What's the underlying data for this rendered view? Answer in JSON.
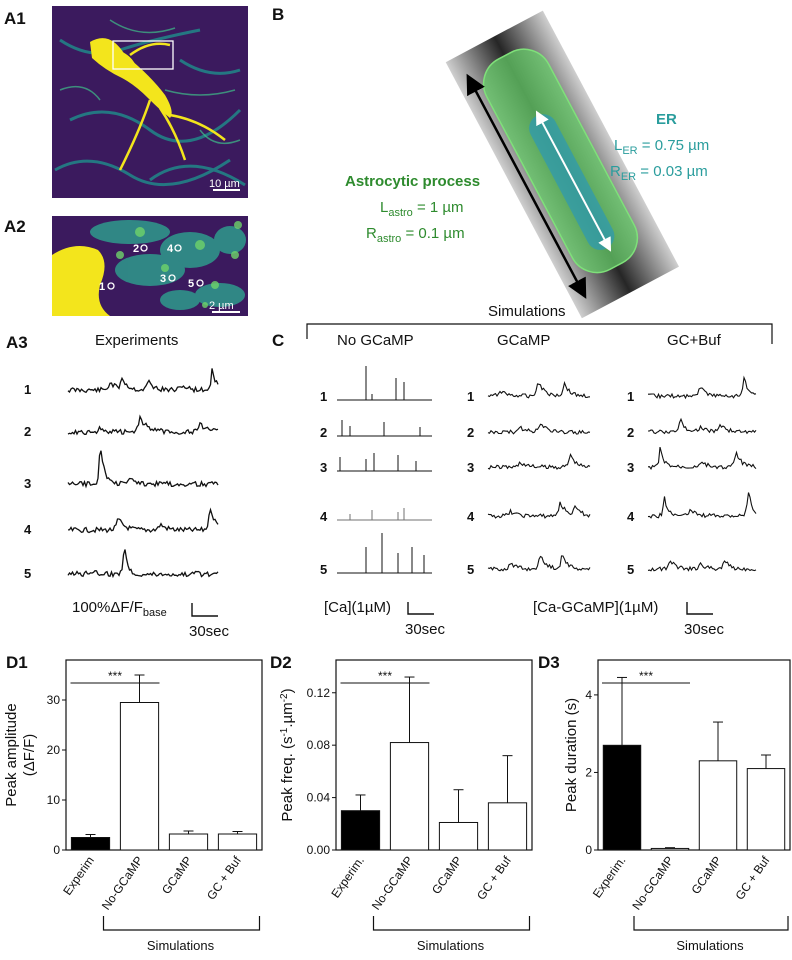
{
  "panels": {
    "a1": "A1",
    "a2": "A2",
    "a3": "A3",
    "b": "B",
    "c": "C",
    "d1": "D1",
    "d2": "D2",
    "d3": "D3"
  },
  "micrograph": {
    "a1_scalebar": "10 µm",
    "a2_scalebar": "2 µm",
    "roi_labels": [
      "1",
      "2",
      "3",
      "4",
      "5"
    ]
  },
  "model": {
    "astro_title": "Astrocytic process",
    "l_astro_sym": "L",
    "l_astro_sub": "astro",
    "l_astro_val": " = 1 µm",
    "r_astro_sym": "R",
    "r_astro_sub": "astro",
    "r_astro_val": " = 0.1 µm",
    "er_title": "ER",
    "l_er_sym": "L",
    "l_er_sub": "ER",
    "l_er_val": " = 0.75 µm",
    "r_er_sym": "R",
    "r_er_sub": "ER",
    "r_er_val": " = 0.03 µm"
  },
  "experiments": {
    "title": "Experiments",
    "trace_labels": [
      "1",
      "2",
      "3",
      "4",
      "5"
    ],
    "scale_prefix": "100%ΔF/F",
    "scale_sub": "base",
    "scale_time": "30sec"
  },
  "simulations": {
    "title": "Simulations",
    "columns": [
      "No GCaMP",
      "GCaMP",
      "GC+Buf"
    ],
    "trace_labels": [
      "1",
      "2",
      "3",
      "4",
      "5"
    ],
    "ca_scale": "[Ca](1µM)",
    "ca_time": "30sec",
    "gc_scale": "[Ca-GCaMP](1µM)",
    "gc_time": "30sec"
  },
  "chart_data": [
    {
      "type": "bar",
      "panel": "D1",
      "ylabel": "Peak amplitude",
      "ylabel2": "(ΔF/F)",
      "categories": [
        "Experim",
        "No-GCaMP",
        "GCaMP",
        "GC + Buf"
      ],
      "values": [
        2.5,
        29.5,
        3.2,
        3.2
      ],
      "errors": [
        0.6,
        5.5,
        0.6,
        0.5
      ],
      "fills": [
        "#000000",
        "#ffffff",
        "#ffffff",
        "#ffffff"
      ],
      "ylim": [
        0,
        38
      ],
      "yticks": [
        "0",
        "10",
        "20",
        "30"
      ],
      "ytick_values": [
        0,
        10,
        20,
        30
      ],
      "significance": "***",
      "group_label": "Simulations"
    },
    {
      "type": "bar",
      "panel": "D2",
      "ylabel": "Peak freq. (s",
      "ylabel_exp": "-1",
      "ylabel_mid": ".µm",
      "ylabel_exp2": "-2",
      "ylabel_end": ")",
      "categories": [
        "Experim.",
        "No-GCaMP",
        "GCaMP",
        "GC + Buf"
      ],
      "values": [
        0.03,
        0.082,
        0.021,
        0.036
      ],
      "errors": [
        0.012,
        0.05,
        0.025,
        0.036
      ],
      "fills": [
        "#000000",
        "#ffffff",
        "#ffffff",
        "#ffffff"
      ],
      "ylim": [
        0,
        0.145
      ],
      "yticks": [
        "0.00",
        "0.04",
        "0.08",
        "0.12"
      ],
      "ytick_values": [
        0,
        0.04,
        0.08,
        0.12
      ],
      "significance": "***",
      "group_label": "Simulations"
    },
    {
      "type": "bar",
      "panel": "D3",
      "ylabel": "Peak duration (s)",
      "categories": [
        "Experim.",
        "No-GCaMP",
        "GCaMP",
        "GC + Buf"
      ],
      "values": [
        2.7,
        0.04,
        2.3,
        2.1
      ],
      "errors": [
        1.75,
        0.02,
        1.0,
        0.35
      ],
      "fills": [
        "#000000",
        "#ffffff",
        "#ffffff",
        "#ffffff"
      ],
      "ylim": [
        0,
        4.9
      ],
      "yticks": [
        "0",
        "2",
        "4"
      ],
      "ytick_values": [
        0,
        2,
        4
      ],
      "significance": "***",
      "group_label": "Simulations"
    }
  ]
}
